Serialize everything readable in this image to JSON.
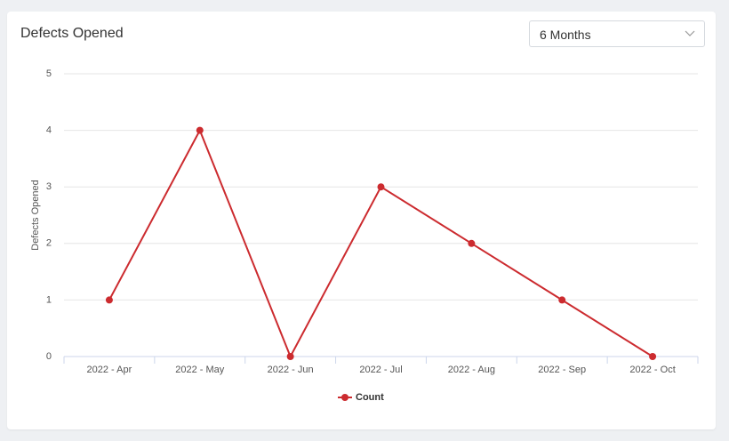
{
  "chart_data": {
    "type": "line",
    "title": "Defects Opened",
    "ylabel": "Defects Opened",
    "categories": [
      "2022 - Apr",
      "2022 - May",
      "2022 - Jun",
      "2022 - Jul",
      "2022 - Aug",
      "2022 - Sep",
      "2022 - Oct"
    ],
    "series": [
      {
        "name": "Count",
        "color": "#cc2b2f",
        "values": [
          1,
          4,
          0,
          3,
          2,
          1,
          0
        ]
      }
    ],
    "ylim": [
      0,
      5
    ],
    "yticks": [
      0,
      1,
      2,
      3,
      4,
      5
    ],
    "grid": true,
    "legend": "bottom"
  },
  "controls": {
    "range": "6 Months"
  }
}
